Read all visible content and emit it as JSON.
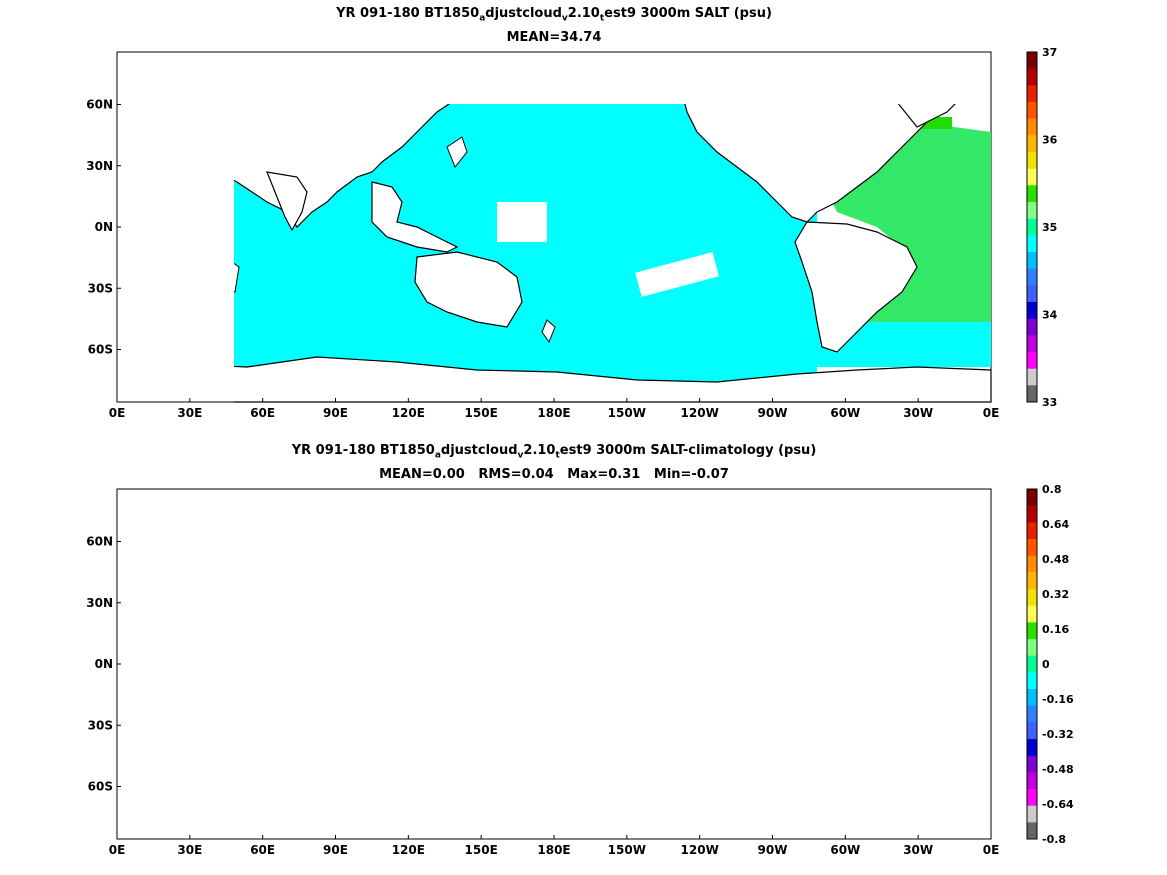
{
  "chart_data": [
    {
      "type": "heatmap",
      "title_parts": [
        "YR 091-180 BT1850",
        "a",
        "djustcloud",
        "v",
        "2.10",
        "t",
        "est9 3000m SALT (psu)"
      ],
      "subtitle": "MEAN=34.74",
      "x_ticks": [
        "0E",
        "30E",
        "60E",
        "90E",
        "120E",
        "150E",
        "180E",
        "150W",
        "120W",
        "90W",
        "60W",
        "30W",
        "0E"
      ],
      "y_ticks": [
        "60N",
        "30N",
        "0N",
        "30S",
        "60S"
      ],
      "colorbar": {
        "range": [
          33,
          37
        ],
        "labels": [
          "37",
          "36",
          "35",
          "34",
          "33"
        ],
        "colors": [
          "#7a0000",
          "#b30000",
          "#e62200",
          "#ff5500",
          "#ff8c00",
          "#ffb400",
          "#f0e000",
          "#ffff55",
          "#2be000",
          "#80ff80",
          "#00ff99",
          "#00ffff",
          "#00bfff",
          "#2c82ff",
          "#4060ff",
          "#0000d0",
          "#7a00d0",
          "#c000e0",
          "#ff00ff",
          "#cccccc",
          "#666666"
        ]
      },
      "regions": {
        "atlantic_value": "35",
        "pacific_value": "34.7",
        "southern_ocean_value": "34.7"
      }
    },
    {
      "type": "heatmap",
      "title_parts": [
        "YR 091-180 BT1850",
        "a",
        "djustcloud",
        "v",
        "2.10",
        "t",
        "est9 3000m SALT-climatology (psu)"
      ],
      "subtitle": "MEAN=0.00   RMS=0.04   Max=0.31   Min=-0.07",
      "x_ticks": [
        "0E",
        "30E",
        "60E",
        "90E",
        "120E",
        "150E",
        "180E",
        "150W",
        "120W",
        "90W",
        "60W",
        "30W",
        "0E"
      ],
      "y_ticks": [
        "60N",
        "30N",
        "0N",
        "30S",
        "60S"
      ],
      "colorbar": {
        "range": [
          -0.8,
          0.8
        ],
        "labels": [
          "0.8",
          "0.64",
          "0.48",
          "0.32",
          "0.16",
          "0",
          "-0.16",
          "-0.32",
          "-0.48",
          "-0.64",
          "-0.8"
        ],
        "colors": [
          "#7a0000",
          "#b30000",
          "#e62200",
          "#ff5500",
          "#ff8c00",
          "#ffb400",
          "#f0e000",
          "#ffff55",
          "#2be000",
          "#80ff80",
          "#00ff99",
          "#00ffff",
          "#00bfff",
          "#2c82ff",
          "#4060ff",
          "#0000d0",
          "#7a00d0",
          "#c000e0",
          "#ff00ff",
          "#cccccc",
          "#666666"
        ]
      }
    }
  ]
}
